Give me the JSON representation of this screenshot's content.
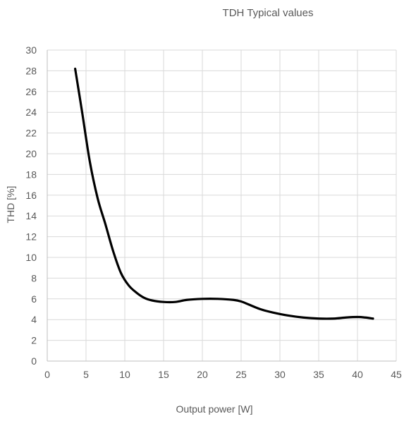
{
  "chart_data": {
    "type": "line",
    "title": "TDH Typical values",
    "xlabel": "Output power [W]",
    "ylabel": "THD [%]",
    "xlim": [
      0,
      45
    ],
    "ylim": [
      0,
      30
    ],
    "x_ticks": [
      0,
      5,
      10,
      15,
      20,
      25,
      30,
      35,
      40,
      45
    ],
    "y_ticks": [
      0,
      2,
      4,
      6,
      8,
      10,
      12,
      14,
      16,
      18,
      20,
      22,
      24,
      26,
      28,
      30
    ],
    "grid": true,
    "legend": "none",
    "series": [
      {
        "color": "#000000",
        "x": [
          3.6,
          4.5,
          5.5,
          6.5,
          7.5,
          8.5,
          9.5,
          10.5,
          11.5,
          12.5,
          13.5,
          15,
          16.5,
          18,
          20,
          22,
          24,
          25,
          26,
          27.5,
          29,
          31,
          33,
          35,
          37,
          38.5,
          40,
          41,
          42
        ],
        "y": [
          28.2,
          24,
          19.2,
          15.7,
          13.2,
          10.6,
          8.5,
          7.3,
          6.6,
          6.1,
          5.85,
          5.7,
          5.7,
          5.9,
          6.0,
          6.0,
          5.9,
          5.75,
          5.45,
          5.0,
          4.7,
          4.4,
          4.2,
          4.1,
          4.1,
          4.2,
          4.25,
          4.2,
          4.1
        ]
      }
    ]
  }
}
